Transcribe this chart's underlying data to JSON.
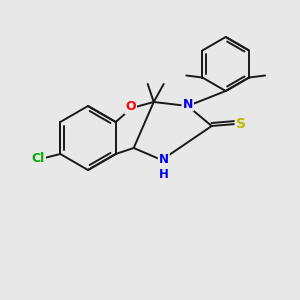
{
  "background_color": "#e8e8e8",
  "bond_color": "#1a1a1a",
  "atom_colors": {
    "O": "#ff0000",
    "N": "#0000ee",
    "S": "#bbbb00",
    "Cl": "#00aa00",
    "C": "#1a1a1a",
    "H": "#1a1a1a"
  },
  "figsize": [
    3.0,
    3.0
  ],
  "dpi": 100
}
